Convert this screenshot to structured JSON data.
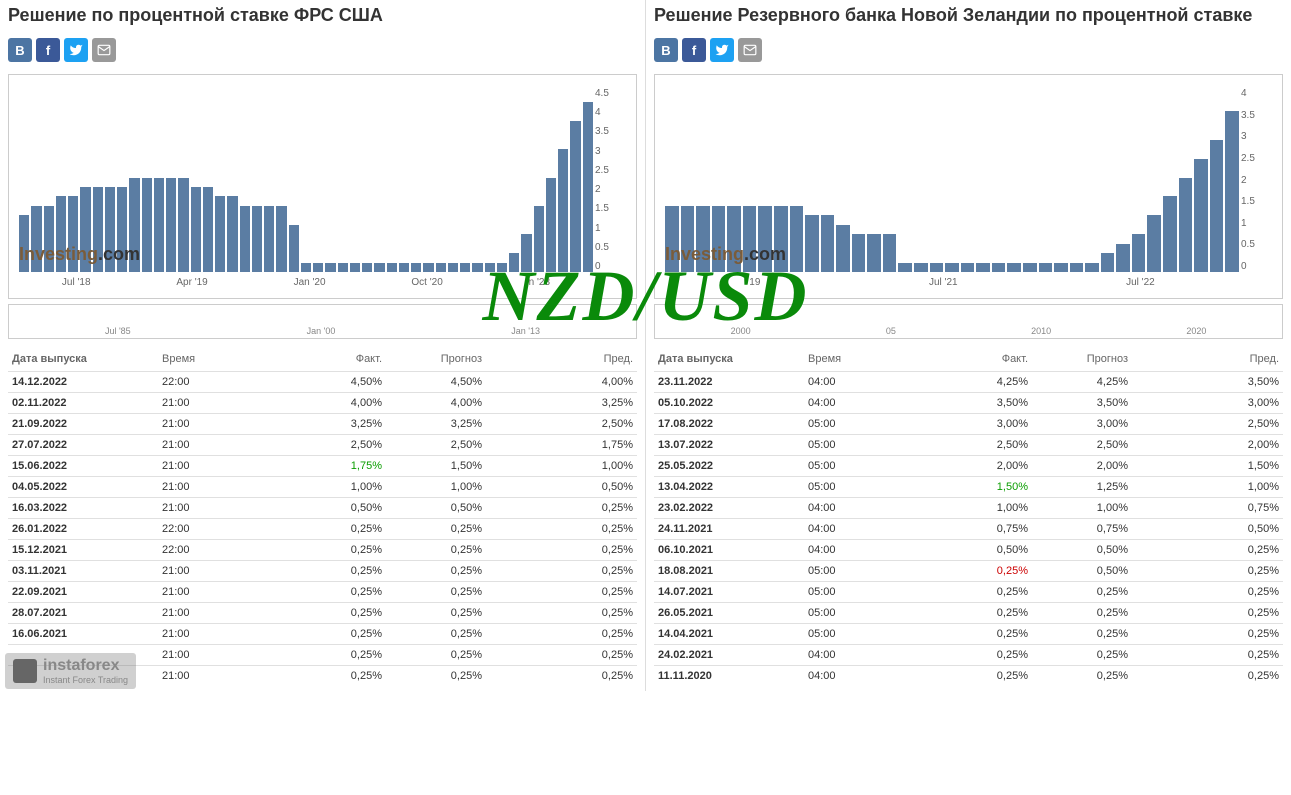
{
  "overlay_text": "NZD/USD",
  "branding": {
    "name": "instaforex",
    "tagline": "Instant Forex Trading"
  },
  "left": {
    "title": "Решение по процентной ставке ФРС США",
    "chart": {
      "type": "bar",
      "bar_color": "#5b7da3",
      "background_color": "#ffffff",
      "ylim": [
        0,
        4.5
      ],
      "yticks": [
        "4.5",
        "4",
        "3.5",
        "3",
        "2.5",
        "2",
        "1.5",
        "1",
        "0.5",
        "0"
      ],
      "xticks": [
        "Jul '18",
        "Apr '19",
        "Jan '20",
        "Oct '20",
        "n '23"
      ],
      "values": [
        1.5,
        1.75,
        1.75,
        2.0,
        2.0,
        2.25,
        2.25,
        2.25,
        2.25,
        2.5,
        2.5,
        2.5,
        2.5,
        2.5,
        2.25,
        2.25,
        2.0,
        2.0,
        1.75,
        1.75,
        1.75,
        1.75,
        1.25,
        0.25,
        0.25,
        0.25,
        0.25,
        0.25,
        0.25,
        0.25,
        0.25,
        0.25,
        0.25,
        0.25,
        0.25,
        0.25,
        0.25,
        0.25,
        0.25,
        0.25,
        0.5,
        1.0,
        1.75,
        2.5,
        3.25,
        4.0,
        4.5
      ],
      "watermark": "Investing.com"
    },
    "mini_chart": {
      "xticks": [
        "Jul '85",
        "Jan '00",
        "Jan '13"
      ]
    },
    "table": {
      "headers": {
        "date": "Дата выпуска",
        "time": "Время",
        "fact": "Факт.",
        "forecast": "Прогноз",
        "prev": "Пред."
      },
      "rows": [
        {
          "date": "14.12.2022",
          "time": "22:00",
          "fact": "4,50%",
          "fact_color": "",
          "forecast": "4,50%",
          "prev": "4,00%"
        },
        {
          "date": "02.11.2022",
          "time": "21:00",
          "fact": "4,00%",
          "fact_color": "",
          "forecast": "4,00%",
          "prev": "3,25%"
        },
        {
          "date": "21.09.2022",
          "time": "21:00",
          "fact": "3,25%",
          "fact_color": "",
          "forecast": "3,25%",
          "prev": "2,50%"
        },
        {
          "date": "27.07.2022",
          "time": "21:00",
          "fact": "2,50%",
          "fact_color": "",
          "forecast": "2,50%",
          "prev": "1,75%"
        },
        {
          "date": "15.06.2022",
          "time": "21:00",
          "fact": "1,75%",
          "fact_color": "green",
          "forecast": "1,50%",
          "prev": "1,00%"
        },
        {
          "date": "04.05.2022",
          "time": "21:00",
          "fact": "1,00%",
          "fact_color": "",
          "forecast": "1,00%",
          "prev": "0,50%"
        },
        {
          "date": "16.03.2022",
          "time": "21:00",
          "fact": "0,50%",
          "fact_color": "",
          "forecast": "0,50%",
          "prev": "0,25%"
        },
        {
          "date": "26.01.2022",
          "time": "22:00",
          "fact": "0,25%",
          "fact_color": "",
          "forecast": "0,25%",
          "prev": "0,25%"
        },
        {
          "date": "15.12.2021",
          "time": "22:00",
          "fact": "0,25%",
          "fact_color": "",
          "forecast": "0,25%",
          "prev": "0,25%"
        },
        {
          "date": "03.11.2021",
          "time": "21:00",
          "fact": "0,25%",
          "fact_color": "",
          "forecast": "0,25%",
          "prev": "0,25%"
        },
        {
          "date": "22.09.2021",
          "time": "21:00",
          "fact": "0,25%",
          "fact_color": "",
          "forecast": "0,25%",
          "prev": "0,25%"
        },
        {
          "date": "28.07.2021",
          "time": "21:00",
          "fact": "0,25%",
          "fact_color": "",
          "forecast": "0,25%",
          "prev": "0,25%"
        },
        {
          "date": "16.06.2021",
          "time": "21:00",
          "fact": "0,25%",
          "fact_color": "",
          "forecast": "0,25%",
          "prev": "0,25%"
        },
        {
          "date": "",
          "time": "21:00",
          "fact": "0,25%",
          "fact_color": "",
          "forecast": "0,25%",
          "prev": "0,25%"
        },
        {
          "date": "",
          "time": "21:00",
          "fact": "0,25%",
          "fact_color": "",
          "forecast": "0,25%",
          "prev": "0,25%"
        }
      ]
    }
  },
  "right": {
    "title": "Решение Резервного банка Новой Зеландии по процентной ставке",
    "chart": {
      "type": "bar",
      "bar_color": "#5b7da3",
      "background_color": "#ffffff",
      "ylim": [
        0,
        4.5
      ],
      "yticks": [
        "4",
        "3.5",
        "3",
        "2.5",
        "2",
        "1.5",
        "1",
        "0.5",
        "0"
      ],
      "xticks": [
        "19",
        "Jul '21",
        "Jul '22"
      ],
      "values": [
        1.75,
        1.75,
        1.75,
        1.75,
        1.75,
        1.75,
        1.75,
        1.75,
        1.75,
        1.5,
        1.5,
        1.25,
        1.0,
        1.0,
        1.0,
        0.25,
        0.25,
        0.25,
        0.25,
        0.25,
        0.25,
        0.25,
        0.25,
        0.25,
        0.25,
        0.25,
        0.25,
        0.25,
        0.5,
        0.75,
        1.0,
        1.5,
        2.0,
        2.5,
        3.0,
        3.5,
        4.25
      ],
      "watermark": "Investing.com"
    },
    "mini_chart": {
      "xticks": [
        "2000",
        "05",
        "2010",
        "2020"
      ]
    },
    "table": {
      "headers": {
        "date": "Дата выпуска",
        "time": "Время",
        "fact": "Факт.",
        "forecast": "Прогноз",
        "prev": "Пред."
      },
      "rows": [
        {
          "date": "23.11.2022",
          "time": "04:00",
          "fact": "4,25%",
          "fact_color": "",
          "forecast": "4,25%",
          "prev": "3,50%"
        },
        {
          "date": "05.10.2022",
          "time": "04:00",
          "fact": "3,50%",
          "fact_color": "",
          "forecast": "3,50%",
          "prev": "3,00%"
        },
        {
          "date": "17.08.2022",
          "time": "05:00",
          "fact": "3,00%",
          "fact_color": "",
          "forecast": "3,00%",
          "prev": "2,50%"
        },
        {
          "date": "13.07.2022",
          "time": "05:00",
          "fact": "2,50%",
          "fact_color": "",
          "forecast": "2,50%",
          "prev": "2,00%"
        },
        {
          "date": "25.05.2022",
          "time": "05:00",
          "fact": "2,00%",
          "fact_color": "",
          "forecast": "2,00%",
          "prev": "1,50%"
        },
        {
          "date": "13.04.2022",
          "time": "05:00",
          "fact": "1,50%",
          "fact_color": "green",
          "forecast": "1,25%",
          "prev": "1,00%"
        },
        {
          "date": "23.02.2022",
          "time": "04:00",
          "fact": "1,00%",
          "fact_color": "",
          "forecast": "1,00%",
          "prev": "0,75%"
        },
        {
          "date": "24.11.2021",
          "time": "04:00",
          "fact": "0,75%",
          "fact_color": "",
          "forecast": "0,75%",
          "prev": "0,50%"
        },
        {
          "date": "06.10.2021",
          "time": "04:00",
          "fact": "0,50%",
          "fact_color": "",
          "forecast": "0,50%",
          "prev": "0,25%"
        },
        {
          "date": "18.08.2021",
          "time": "05:00",
          "fact": "0,25%",
          "fact_color": "red",
          "forecast": "0,50%",
          "prev": "0,25%"
        },
        {
          "date": "14.07.2021",
          "time": "05:00",
          "fact": "0,25%",
          "fact_color": "",
          "forecast": "0,25%",
          "prev": "0,25%"
        },
        {
          "date": "26.05.2021",
          "time": "05:00",
          "fact": "0,25%",
          "fact_color": "",
          "forecast": "0,25%",
          "prev": "0,25%"
        },
        {
          "date": "14.04.2021",
          "time": "05:00",
          "fact": "0,25%",
          "fact_color": "",
          "forecast": "0,25%",
          "prev": "0,25%"
        },
        {
          "date": "24.02.2021",
          "time": "04:00",
          "fact": "0,25%",
          "fact_color": "",
          "forecast": "0,25%",
          "prev": "0,25%"
        },
        {
          "date": "11.11.2020",
          "time": "04:00",
          "fact": "0,25%",
          "fact_color": "",
          "forecast": "0,25%",
          "prev": "0,25%"
        }
      ]
    }
  }
}
